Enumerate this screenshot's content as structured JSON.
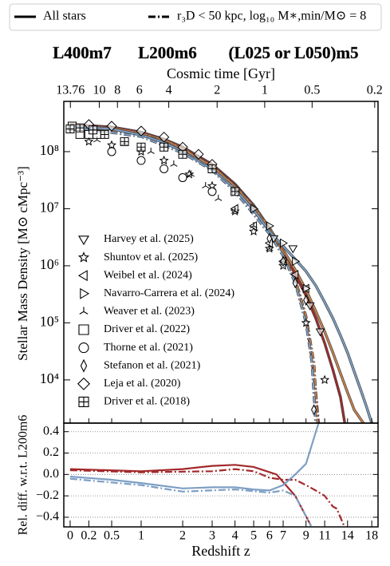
{
  "chart_data": [
    {
      "type": "line",
      "line_styles": {
        "all_stars": "All stars",
        "r3d_cut": "r₃D < 50 kpc, log₁₀ M∗,min/M⊙ = 8"
      },
      "ylabel": "Stellar Mass Density [M⊙ cMpc⁻³]",
      "top_axis": {
        "label": "Cosmic time [Gyr]",
        "ticks": [
          13.76,
          10,
          8,
          6,
          4,
          2,
          1,
          0.5,
          0.2
        ]
      },
      "xscale": "log1p",
      "yscale": "log",
      "xlim": [
        -0.06,
        19.2
      ],
      "ylim": [
        1750,
        760000000
      ],
      "yticks": [
        {
          "value": 10000,
          "label": "10⁴"
        },
        {
          "value": 100000,
          "label": "10⁵"
        },
        {
          "value": 1000000,
          "label": "10⁶"
        },
        {
          "value": 10000000,
          "label": "10⁷"
        },
        {
          "value": 100000000,
          "label": "10⁸"
        }
      ],
      "simulations": [
        {
          "name": "L400m7",
          "color": "#a3282a",
          "all_stars": {
            "x": [
              0,
              0.5,
              1,
              1.5,
              2,
              3,
              4,
              5,
              6,
              7,
              8,
              9,
              10,
              11,
              12,
              13,
              13.6
            ],
            "values": [
              300000000,
              270000000,
              220000000,
              165000000,
              120000000,
              60000000,
              27000000,
              11500000,
              4600000,
              1800000,
              700000,
              300000,
              120000,
              44000,
              15000,
              5000,
              1750
            ]
          },
          "r3d_cut": {
            "x": [
              0,
              1,
              2,
              3,
              4,
              5,
              6,
              7,
              8,
              9,
              9.5,
              10,
              10.3
            ],
            "values": [
              290000000,
              215000000,
              115000000,
              57000000,
              26000000,
              11000000,
              4400000,
              1700000,
              550000,
              120000,
              30000,
              6000,
              1750
            ]
          }
        },
        {
          "name": "L200m6",
          "color": "#c8804a",
          "all_stars": {
            "x": [
              0,
              0.5,
              1,
              1.5,
              2,
              3,
              4,
              5,
              6,
              7,
              8,
              9,
              10,
              11,
              12,
              13,
              14,
              15,
              16.5
            ],
            "values": [
              285000000,
              260000000,
              210000000,
              160000000,
              115000000,
              56000000,
              25000000,
              11000000,
              4600000,
              1900000,
              850000,
              380000,
              160000,
              70000,
              30000,
              13000,
              6000,
              3000,
              1750
            ]
          },
          "r3d_cut": {
            "x": [
              0,
              1,
              2,
              3,
              4,
              5,
              6,
              7,
              8,
              9,
              9.8,
              10.2
            ],
            "values": [
              280000000,
              205000000,
              112000000,
              55000000,
              24500000,
              10500000,
              4300000,
              1700000,
              580000,
              130000,
              20000,
              1750
            ]
          }
        },
        {
          "name": "(L025 or L050)m5",
          "color": "#7d9fc4",
          "all_stars": {
            "x": [
              0,
              0.5,
              1,
              1.5,
              2,
              3,
              4,
              5,
              6,
              7,
              8,
              9,
              10,
              11,
              12,
              13,
              14,
              15,
              16,
              17,
              18
            ],
            "values": [
              280000000,
              250000000,
              195000000,
              145000000,
              100000000,
              50000000,
              22000000,
              9500000,
              4000000,
              2200000,
              1300000,
              800000,
              450000,
              230000,
              120000,
              60000,
              30000,
              14000,
              7000,
              3500,
              1750
            ]
          },
          "r3d_cut": {
            "x": [
              0,
              1,
              2,
              3,
              4,
              5,
              6,
              7,
              8,
              9,
              9.6,
              10
            ],
            "values": [
              270000000,
              185000000,
              95000000,
              47000000,
              20000000,
              8000000,
              3600000,
              1500000,
              500000,
              100000,
              20000,
              1750
            ]
          }
        }
      ],
      "observations": [
        {
          "name": "Harvey et al. (2025)",
          "marker": "triangle-down",
          "x": [
            6.3,
            7.8,
            9.4,
            10.5
          ],
          "values": [
            3000000,
            2000000,
            200000,
            70000
          ]
        },
        {
          "name": "Shuntov et al. (2025)",
          "marker": "star",
          "x": [
            0.2,
            0.5,
            1,
            1.5,
            2.2,
            3,
            4,
            5,
            6,
            7,
            9,
            11
          ],
          "values": [
            150000000,
            130000000,
            100000000,
            70000000,
            40000000,
            25000000,
            9000000,
            4000000,
            2000000,
            1000000,
            100000,
            10000
          ]
        },
        {
          "name": "Weibel et al. (2024)",
          "marker": "triangle-left",
          "x": [
            4,
            5,
            6,
            7,
            8,
            9
          ],
          "values": [
            10000000,
            5000000,
            2500000,
            1200000,
            700000,
            400000
          ]
        },
        {
          "name": "Navarro-Carrera et al. (2024)",
          "marker": "triangle-right",
          "x": [
            4,
            5,
            6,
            7,
            8,
            9
          ],
          "values": [
            20000000,
            10000000,
            5000000,
            2500000,
            1200000,
            400000
          ]
        },
        {
          "name": "Weaver et al. (2023)",
          "marker": "tri",
          "x": [
            0.3,
            0.7,
            1.2,
            1.75,
            2.25,
            2.75,
            3.25,
            4,
            5,
            6,
            7
          ],
          "values": [
            160000000,
            140000000,
            100000000,
            60000000,
            40000000,
            25000000,
            15000000,
            9000000,
            5000000,
            2000000,
            1200000
          ]
        },
        {
          "name": "Driver et al. (2022)",
          "marker": "square",
          "x": [
            0.02,
            0.1,
            0.2,
            0.3
          ],
          "values": [
            280000000,
            200000000,
            200000000,
            200000000
          ]
        },
        {
          "name": "Thorne et al. (2021)",
          "marker": "circle",
          "x": [
            0.5,
            1,
            1.5,
            2,
            3
          ],
          "values": [
            100000000,
            70000000,
            50000000,
            35000000,
            20000000
          ]
        },
        {
          "name": "Stefanon et al. (2021)",
          "marker": "thin-diamond",
          "x": [
            6,
            7,
            8,
            9,
            9.8
          ],
          "values": [
            3000000,
            1200000,
            500000,
            250000,
            3000
          ]
        },
        {
          "name": "Leja et al. (2020)",
          "marker": "diamond",
          "x": [
            0.2,
            0.5,
            1,
            1.5,
            2,
            2.5,
            3
          ],
          "values": [
            300000000,
            280000000,
            230000000,
            180000000,
            120000000,
            90000000,
            60000000
          ]
        },
        {
          "name": "Driver et al. (2018)",
          "marker": "square-plus",
          "x": [
            0,
            0.1,
            0.25,
            0.4,
            0.7,
            1,
            1.5,
            2,
            3,
            4
          ],
          "values": [
            250000000,
            260000000,
            240000000,
            200000000,
            150000000,
            120000000,
            120000000,
            90000000,
            50000000,
            20000000
          ]
        }
      ]
    },
    {
      "type": "line",
      "ylabel": "Rel. diff. w.r.t. L200m6",
      "xlabel": "Redshift z",
      "xscale": "log1p",
      "xlim": [
        -0.06,
        19.2
      ],
      "ylim": [
        -0.49,
        0.48
      ],
      "xticks": [
        0,
        0.2,
        0.5,
        1,
        2,
        3,
        4,
        5,
        6,
        7,
        9,
        11,
        14,
        18
      ],
      "yticks": [
        {
          "value": 0.4,
          "label": "0.4"
        },
        {
          "value": 0.2,
          "label": "0.2"
        },
        {
          "value": 0,
          "label": "0.0"
        },
        {
          "value": -0.2,
          "label": "−0.2"
        },
        {
          "value": -0.4,
          "label": "−0.4"
        }
      ],
      "grid": true,
      "series": [
        {
          "color": "#a3282a",
          "style": "solid",
          "x": [
            0,
            1,
            2,
            3,
            4,
            5,
            6.5,
            8,
            9.5
          ],
          "values": [
            0.05,
            0.03,
            0.05,
            0.08,
            0.09,
            0.07,
            0,
            -0.2,
            -0.48
          ]
        },
        {
          "color": "#a3282a",
          "style": "dashdot",
          "x": [
            0,
            1,
            3,
            4,
            5,
            6,
            7,
            8,
            9,
            10,
            11,
            12,
            12.5,
            13.5
          ],
          "values": [
            0.04,
            0.02,
            0.03,
            0.05,
            0.03,
            -0.03,
            -0.05,
            -0.05,
            -0.1,
            -0.15,
            -0.2,
            -0.3,
            -0.32,
            -0.48
          ]
        },
        {
          "color": "#7d9fc4",
          "style": "solid",
          "x": [
            0,
            0.5,
            1,
            2,
            3,
            4,
            5,
            6,
            7,
            8,
            9,
            10.3
          ],
          "values": [
            -0.02,
            -0.05,
            -0.08,
            -0.13,
            -0.12,
            -0.12,
            -0.14,
            -0.15,
            -0.1,
            0,
            0.1,
            0.48
          ]
        },
        {
          "color": "#7d9fc4",
          "style": "dashdot",
          "x": [
            0,
            1,
            2,
            4,
            6,
            7,
            8,
            9.5
          ],
          "values": [
            -0.04,
            -0.1,
            -0.16,
            -0.14,
            -0.17,
            -0.15,
            -0.2,
            -0.48
          ]
        }
      ]
    }
  ]
}
